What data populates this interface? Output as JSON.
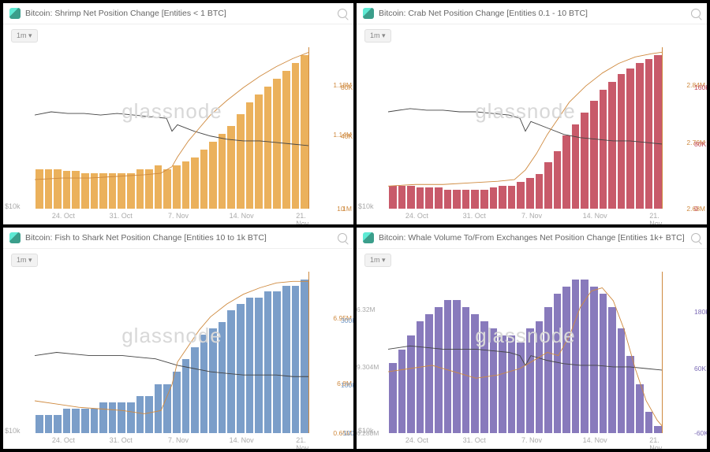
{
  "watermark": "glassnode",
  "range_label": "1m ▾",
  "y_left_label": "$10k",
  "x_ticks": [
    "24. Oct",
    "31. Oct",
    "7. Nov",
    "14. Nov",
    "21. Nov"
  ],
  "x_tick_positions_pct": [
    10,
    30,
    50,
    72,
    94
  ],
  "panels": [
    {
      "id": "shrimp",
      "title": "Bitcoin: Shrimp Net Position Change [Entities < 1 BTC]",
      "bar_color": "#e9a84a",
      "line1_color": "#444444",
      "line2_color": "#cf8a3f",
      "right_axis_color": "#cf8a3f",
      "right2_axis_color": "#cf8a3f",
      "right_ticks": [
        {
          "label": "1.18M",
          "pos": 25
        },
        {
          "label": "1.14M",
          "pos": 55
        },
        {
          "label": "1.1M",
          "pos": 100
        }
      ],
      "right2_ticks": [
        {
          "label": "80K",
          "pos": 25
        },
        {
          "label": "40K",
          "pos": 55
        },
        {
          "label": "0",
          "pos": 100
        }
      ],
      "bar_values": [
        20,
        20,
        20,
        19,
        19,
        18,
        18,
        18,
        18,
        18,
        18,
        20,
        20,
        22,
        20,
        22,
        24,
        26,
        30,
        34,
        38,
        42,
        48,
        54,
        58,
        62,
        66,
        70,
        74,
        78
      ],
      "line1_path": "M0,42 L6,40 L12,41 L18,41 L24,42 L30,41 L36,42 L42,43 L48,44 L50,52 L52,48 L58,52 L64,55 L70,57 L76,58 L82,58 L88,59 L94,60 L100,61",
      "line2_path": "M0,82 L10,81 L20,81 L30,80 L40,79 L46,78 L50,74 L52,68 L56,58 L60,50 L64,42 L70,33 L76,25 L82,18 L88,12 L94,7 L100,3"
    },
    {
      "id": "crab",
      "title": "Bitcoin: Crab Net Position Change [Entities 0.1 - 10 BTC]",
      "bar_color": "#c2485a",
      "line1_color": "#444444",
      "line2_color": "#cf8a3f",
      "right_axis_color": "#cf8a3f",
      "right2_axis_color": "#c2485a",
      "right_ticks": [
        {
          "label": "2.84M",
          "pos": 25
        },
        {
          "label": "2.76M",
          "pos": 60
        },
        {
          "label": "2.68M",
          "pos": 100
        }
      ],
      "right2_ticks": [
        {
          "label": "160K",
          "pos": 25
        },
        {
          "label": "80K",
          "pos": 60
        },
        {
          "label": "0",
          "pos": 100
        }
      ],
      "bar_values": [
        12,
        12,
        12,
        11,
        11,
        11,
        10,
        10,
        10,
        10,
        10,
        11,
        12,
        12,
        14,
        16,
        18,
        24,
        30,
        38,
        44,
        50,
        56,
        62,
        66,
        70,
        73,
        76,
        78,
        80
      ],
      "line1_path": "M0,40 L8,38 L14,39 L20,39 L26,40 L32,40 L38,41 L44,42 L48,44 L50,52 L52,46 L58,50 L64,54 L70,56 L76,57 L82,58 L88,58 L94,59 L100,60",
      "line2_path": "M0,86 L10,85 L20,85 L30,84 L40,83 L46,82 L50,76 L54,66 L58,54 L62,44 L66,34 L72,24 L78,16 L84,10 L90,6 L96,4 L100,3"
    },
    {
      "id": "fish",
      "title": "Bitcoin: Fish to Shark Net Position Change [Entities 10 to 1k BTC]",
      "bar_color": "#6d94c3",
      "line1_color": "#444444",
      "line2_color": "#cf8a3f",
      "right_axis_color": "#cf8a3f",
      "right2_axis_color": "#6d94c3",
      "right_ticks": [
        {
          "label": "6.95M",
          "pos": 30
        },
        {
          "label": "6.8M",
          "pos": 70
        },
        {
          "label": "0.65M",
          "pos": 100
        }
      ],
      "right2_ticks": [
        {
          "label": "300K",
          "pos": 30
        },
        {
          "label": "100K",
          "pos": 70
        },
        {
          "label": "-100K",
          "pos": 100
        }
      ],
      "bar_values": [
        3,
        3,
        3,
        4,
        4,
        4,
        4,
        5,
        5,
        5,
        5,
        6,
        6,
        8,
        8,
        10,
        12,
        14,
        16,
        17,
        18,
        20,
        21,
        22,
        22,
        23,
        23,
        24,
        24,
        25
      ],
      "line1_path": "M0,52 L8,50 L14,51 L20,52 L26,52 L32,52 L38,53 L44,54 L48,56 L52,58 L58,60 L64,62 L70,63 L76,64 L82,64 L88,64 L94,65 L100,65",
      "line2_path": "M0,80 L8,82 L16,84 L24,85 L32,86 L40,88 L46,86 L50,70 L52,56 L56,46 L60,36 L64,28 L70,20 L76,14 L82,10 L88,7 L94,6 L100,6"
    },
    {
      "id": "whale",
      "title": "Bitcoin: Whale Volume To/From Exchanges Net Position Change [Entities 1k+ BTC]",
      "bar_color": "#7b6bb5",
      "line1_color": "#444444",
      "line2_color": "#cf8a3f",
      "right_axis_color": "#cf8a3f",
      "right2_axis_color": "#7b6bb5",
      "left_extra_ticks": [
        {
          "label": "6.32M",
          "pos": 25
        },
        {
          "label": "9.304M",
          "pos": 60
        },
        {
          "label": "6.288M",
          "pos": 100
        }
      ],
      "right2_ticks": [
        {
          "label": "180K",
          "pos": 25
        },
        {
          "label": "60K",
          "pos": 60
        },
        {
          "label": "-60K",
          "pos": 100
        }
      ],
      "bar_values": [
        10,
        12,
        14,
        16,
        17,
        18,
        19,
        19,
        18,
        17,
        16,
        15,
        14,
        14,
        13,
        15,
        16,
        18,
        20,
        21,
        22,
        22,
        21,
        20,
        18,
        15,
        11,
        7,
        3,
        1
      ],
      "line1_path": "M0,48 L8,46 L14,47 L20,48 L26,48 L32,48 L38,49 L44,50 L48,52 L50,58 L52,52 L58,55 L64,57 L70,58 L76,58 L82,59 L88,59 L94,60 L100,61",
      "line2_path": "M0,62 L8,60 L16,58 L24,62 L32,66 L40,64 L48,60 L54,54 L58,50 L62,52 L66,40 L70,22 L74,12 L78,10 L82,18 L86,36 L90,60 L94,80 L98,92 L100,96"
    }
  ]
}
